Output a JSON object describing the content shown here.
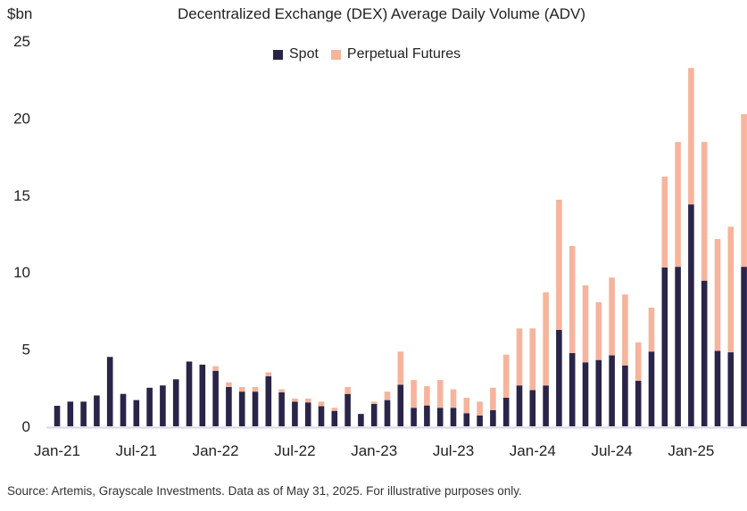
{
  "chart_data": {
    "type": "bar",
    "stacked": true,
    "title": "Decentralized Exchange (DEX) Average Daily Volume (ADV)",
    "ylabel": "$bn",
    "ylim": [
      0,
      25
    ],
    "yticks": [
      0,
      5,
      10,
      15,
      20,
      25
    ],
    "xtick_labels": [
      "Jan-21",
      "Jul-21",
      "Jan-22",
      "Jul-22",
      "Jan-23",
      "Jul-23",
      "Jan-24",
      "Jul-24",
      "Jan-25"
    ],
    "categories": [
      "Jan-21",
      "Feb-21",
      "Mar-21",
      "Apr-21",
      "May-21",
      "Jun-21",
      "Jul-21",
      "Aug-21",
      "Sep-21",
      "Oct-21",
      "Nov-21",
      "Dec-21",
      "Jan-22",
      "Feb-22",
      "Mar-22",
      "Apr-22",
      "May-22",
      "Jun-22",
      "Jul-22",
      "Aug-22",
      "Sep-22",
      "Oct-22",
      "Nov-22",
      "Dec-22",
      "Jan-23",
      "Feb-23",
      "Mar-23",
      "Apr-23",
      "May-23",
      "Jun-23",
      "Jul-23",
      "Aug-23",
      "Sep-23",
      "Oct-23",
      "Nov-23",
      "Dec-23",
      "Jan-24",
      "Feb-24",
      "Mar-24",
      "Apr-24",
      "May-24",
      "Jun-24",
      "Jul-24",
      "Aug-24",
      "Sep-24",
      "Oct-24",
      "Nov-24",
      "Dec-24",
      "Jan-25",
      "Feb-25",
      "Mar-25",
      "Apr-25",
      "May-25"
    ],
    "series": [
      {
        "name": "Spot",
        "color": "#2a2448",
        "values": [
          1.33,
          1.6,
          1.6,
          2.0,
          4.5,
          2.1,
          1.7,
          2.5,
          2.65,
          3.05,
          4.2,
          4.0,
          3.6,
          2.55,
          2.25,
          2.25,
          3.25,
          2.2,
          1.6,
          1.55,
          1.3,
          1.0,
          2.1,
          0.8,
          1.45,
          1.7,
          2.7,
          1.2,
          1.35,
          1.2,
          1.2,
          0.85,
          0.7,
          1.05,
          1.85,
          2.65,
          2.35,
          2.65,
          6.25,
          4.75,
          4.15,
          4.3,
          4.6,
          3.95,
          2.95,
          4.85,
          10.3,
          10.35,
          14.4,
          9.45,
          4.9,
          4.8,
          10.35
        ]
      },
      {
        "name": "Perpetual Futures",
        "color": "#f6b49c",
        "values": [
          0,
          0,
          0,
          0,
          0,
          0,
          0,
          0,
          0,
          0,
          0,
          0,
          0.3,
          0.3,
          0.3,
          0.3,
          0.25,
          0.2,
          0.2,
          0.25,
          0.3,
          0.2,
          0.45,
          0,
          0.15,
          0.55,
          2.15,
          1.8,
          1.25,
          1.8,
          1.2,
          1.0,
          0.9,
          1.45,
          2.8,
          3.7,
          4.0,
          6.05,
          8.45,
          6.95,
          5.0,
          3.75,
          5.05,
          4.6,
          2.5,
          2.85,
          5.9,
          8.1,
          8.85,
          9.0,
          7.25,
          8.15,
          9.9
        ]
      }
    ],
    "legend": "top-center",
    "grid": false
  },
  "source": "Source: Artemis, Grayscale Investments. Data as of May 31, 2025. For illustrative purposes only."
}
